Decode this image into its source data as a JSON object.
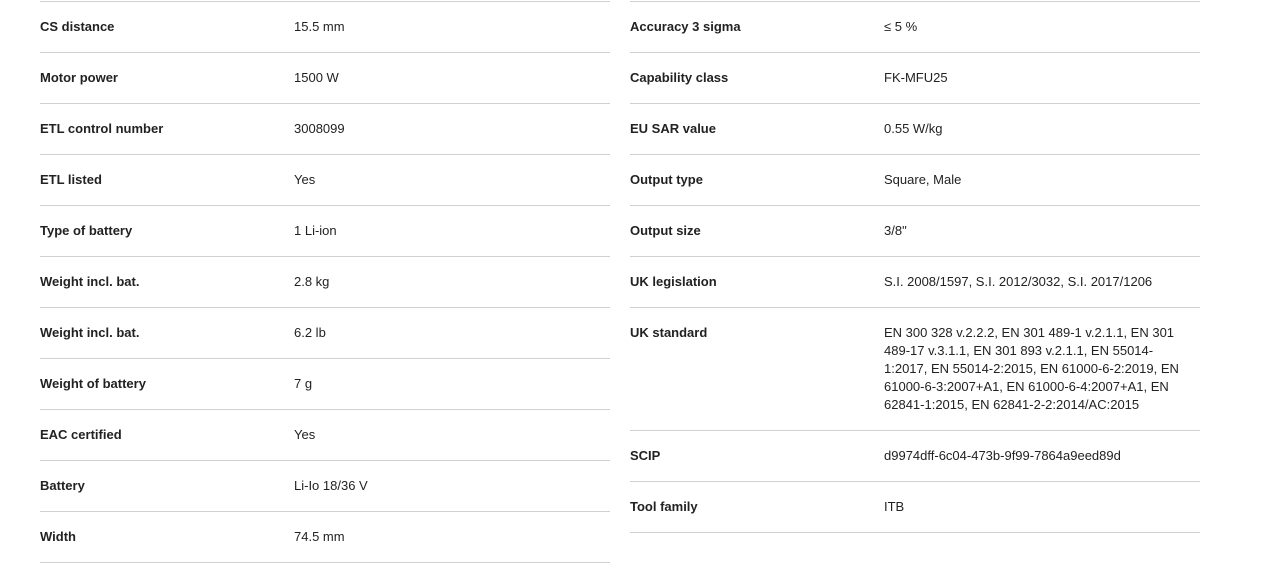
{
  "left_table": [
    {
      "label": "CS distance",
      "value": "15.5 mm"
    },
    {
      "label": "Motor power",
      "value": "1500 W"
    },
    {
      "label": "ETL control number",
      "value": "3008099"
    },
    {
      "label": "ETL listed",
      "value": "Yes"
    },
    {
      "label": "Type of battery",
      "value": "1 Li-ion"
    },
    {
      "label": "Weight incl. bat.",
      "value": "2.8 kg"
    },
    {
      "label": "Weight incl. bat.",
      "value": "6.2 lb"
    },
    {
      "label": "Weight of battery",
      "value": "7 g"
    },
    {
      "label": "EAC certified",
      "value": "Yes"
    },
    {
      "label": "Battery",
      "value": "Li-Io 18/36 V"
    },
    {
      "label": "Width",
      "value": "74.5 mm"
    }
  ],
  "right_table": [
    {
      "label": "Accuracy 3 sigma",
      "value": "≤ 5 %"
    },
    {
      "label": "Capability class",
      "value": "FK-MFU25"
    },
    {
      "label": "EU SAR value",
      "value": "0.55 W/kg"
    },
    {
      "label": "Output type",
      "value": "Square, Male"
    },
    {
      "label": "Output size",
      "value": "3/8\""
    },
    {
      "label": "UK legislation",
      "value": "S.I. 2008/1597, S.I. 2012/3032, S.I. 2017/1206"
    },
    {
      "label": "UK standard",
      "value": "EN 300 328 v.2.2.2, EN 301 489-1 v.2.1.1, EN 301 489-17 v.3.1.1, EN 301 893 v.2.1.1, EN 55014-1:2017, EN 55014-2:2015, EN 61000-6-2:2019, EN 61000-6-3:2007+A1, EN 61000-6-4:2007+A1, EN 62841-1:2015, EN 62841-2-2:2014/AC:2015"
    },
    {
      "label": "SCIP",
      "value": "d9974dff-6c04-473b-9f99-7864a9eed89d"
    },
    {
      "label": "Tool family",
      "value": "ITB"
    }
  ]
}
